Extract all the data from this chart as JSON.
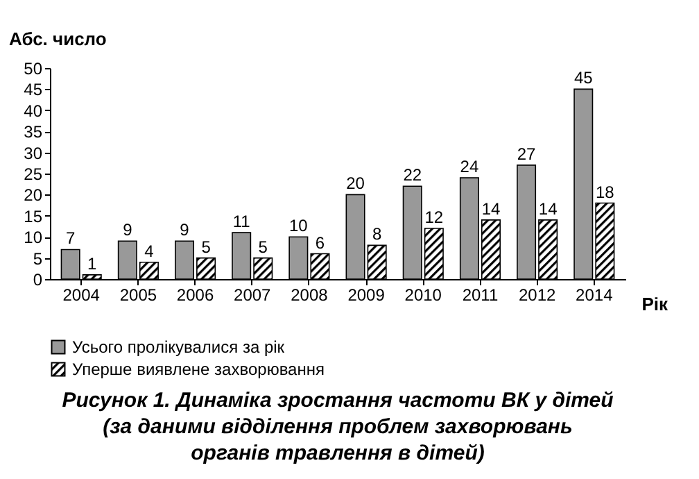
{
  "chart_data": {
    "type": "bar",
    "title": "Рисунок 1. Динаміка зростання частоти ВК у дітей\n(за даними відділення проблем захворювань\nорганів травлення в дітей)",
    "xlabel": "Рік",
    "ylabel": "Абс. число",
    "categories": [
      "2004",
      "2005",
      "2006",
      "2007",
      "2008",
      "2009",
      "2010",
      "2011",
      "2012",
      "2014"
    ],
    "series": [
      {
        "name": "Усього пролікувалися за рік",
        "color": "#999999",
        "values": [
          7,
          9,
          9,
          11,
          10,
          20,
          22,
          24,
          27,
          45
        ]
      },
      {
        "name": "Уперше виявлене захворювання",
        "color": "#000000",
        "values": [
          1,
          4,
          5,
          5,
          6,
          8,
          12,
          14,
          14,
          18
        ]
      }
    ],
    "ylim": [
      0,
      50
    ],
    "yticks": [
      0,
      5,
      10,
      15,
      20,
      25,
      30,
      35,
      40,
      45,
      50
    ],
    "data_labels": true,
    "legend": "bottom left",
    "grid": false
  }
}
